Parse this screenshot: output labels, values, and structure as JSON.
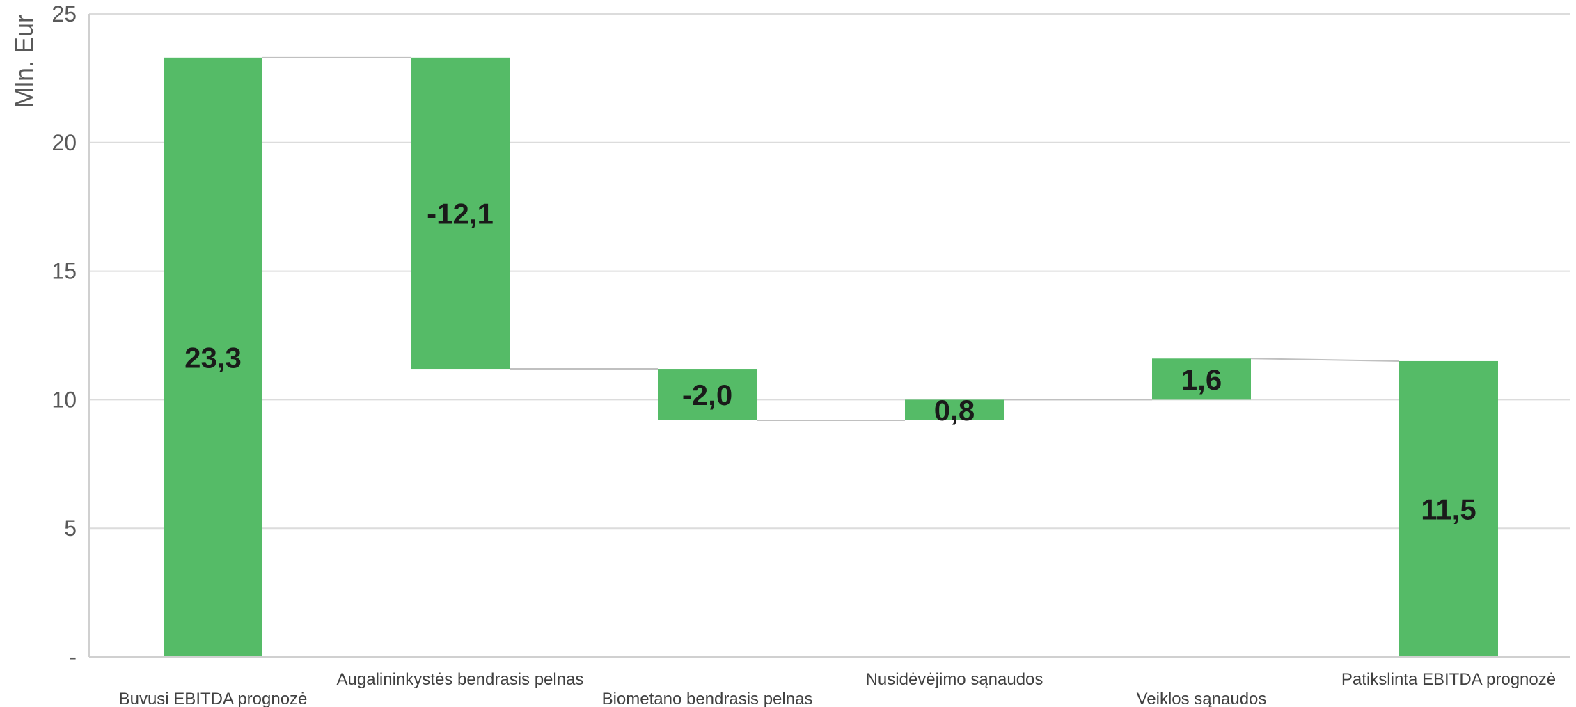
{
  "chart_data": {
    "type": "bar",
    "subtype": "waterfall",
    "title": "",
    "xlabel": "",
    "ylabel": "Mln. Eur",
    "ylim": [
      0,
      25
    ],
    "y_ticks": [
      {
        "value": 0,
        "label": "-"
      },
      {
        "value": 5,
        "label": "5"
      },
      {
        "value": 10,
        "label": "10"
      },
      {
        "value": 15,
        "label": "15"
      },
      {
        "value": 20,
        "label": "20"
      },
      {
        "value": 25,
        "label": "25"
      }
    ],
    "grid": true,
    "legend": "none",
    "bar_color": "#55bb67",
    "categories": [
      "Buvusi EBITDA prognozė",
      "Augalininkystės bendrasis pelnas",
      "Biometano bendrasis pelnas",
      "Nusidėvėjimo sąnaudos",
      "Veiklos sąnaudos",
      "Patikslinta EBITDA prognozė"
    ],
    "bars": [
      {
        "category": "Buvusi EBITDA prognozė",
        "start": 0,
        "end": 23.3,
        "label": "23,3"
      },
      {
        "category": "Augalininkystės bendrasis pelnas",
        "start": 23.3,
        "end": 11.2,
        "label": "-12,1"
      },
      {
        "category": "Biometano bendrasis pelnas",
        "start": 11.2,
        "end": 9.2,
        "label": "-2,0"
      },
      {
        "category": "Nusidėvėjimo sąnaudos",
        "start": 9.2,
        "end": 10.0,
        "label": "0,8"
      },
      {
        "category": "Veiklos sąnaudos",
        "start": 10.0,
        "end": 11.6,
        "label": "1,6"
      },
      {
        "category": "Patikslinta EBITDA prognozė",
        "start": 0,
        "end": 11.5,
        "label": "11,5"
      }
    ]
  }
}
